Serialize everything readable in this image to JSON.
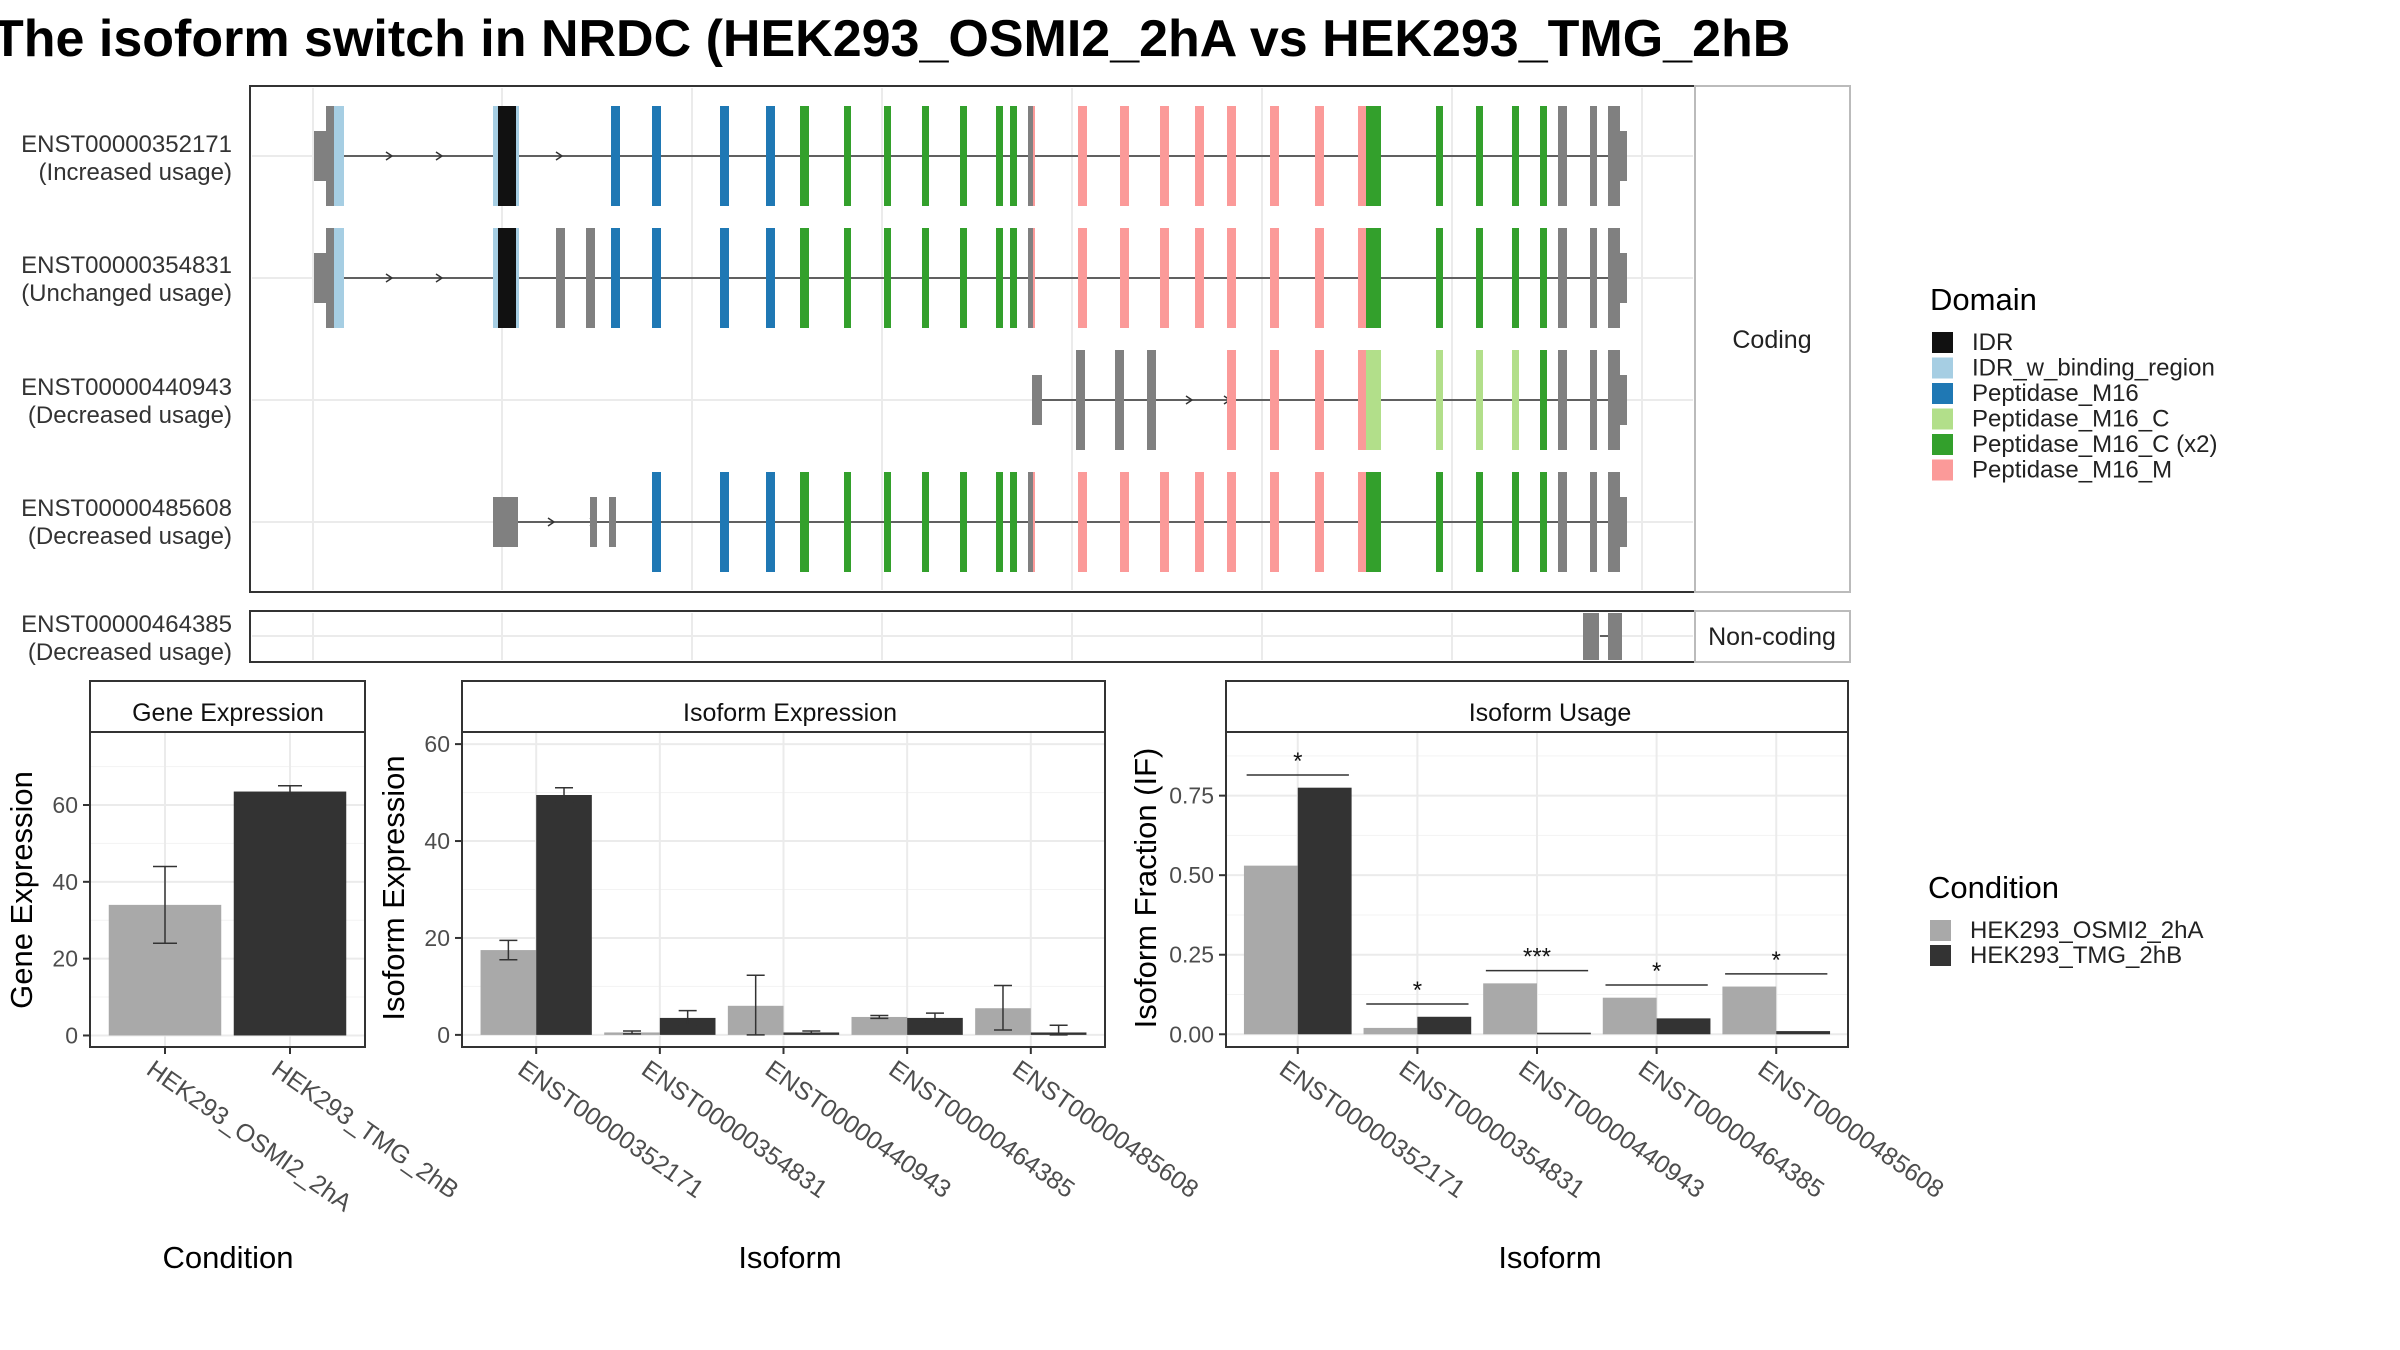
{
  "title": "The isoform switch in NRDC (HEK293_OSMI2_2hA vs HEK293_TMG_2hB",
  "structure": {
    "coding_strip_label": "Coding",
    "noncoding_strip_label": "Non-coding",
    "transcripts": [
      {
        "id": "ENST00000352171",
        "usage": "(Increased usage)",
        "group": "coding"
      },
      {
        "id": "ENST00000354831",
        "usage": "(Unchanged usage)",
        "group": "coding"
      },
      {
        "id": "ENST00000440943",
        "usage": "(Decreased usage)",
        "group": "coding"
      },
      {
        "id": "ENST00000485608",
        "usage": "(Decreased usage)",
        "group": "coding"
      },
      {
        "id": "ENST00000464385",
        "usage": "(Decreased usage)",
        "group": "noncoding"
      }
    ]
  },
  "domain_legend": {
    "title": "Domain",
    "items": [
      {
        "label": "IDR",
        "color": "#111111"
      },
      {
        "label": "IDR_w_binding_region",
        "color": "#a6cee3"
      },
      {
        "label": "Peptidase_M16",
        "color": "#1f78b4"
      },
      {
        "label": "Peptidase_M16_C",
        "color": "#b2df8a"
      },
      {
        "label": "Peptidase_M16_C (x2)",
        "color": "#33a02c"
      },
      {
        "label": "Peptidase_M16_M",
        "color": "#fb9a99"
      }
    ]
  },
  "condition_legend": {
    "title": "Condition",
    "items": [
      {
        "label": "HEK293_OSMI2_2hA",
        "color": "#a9a9a9"
      },
      {
        "label": "HEK293_TMG_2hB",
        "color": "#333333"
      }
    ]
  },
  "chart_data": [
    {
      "type": "bar",
      "panel": "Gene Expression",
      "xlabel": "Condition",
      "ylabel": "Gene Expression",
      "categories": [
        "HEK293_OSMI2_2hA",
        "HEK293_TMG_2hB"
      ],
      "values": [
        34,
        63.5
      ],
      "errors": [
        [
          24,
          44
        ],
        [
          62.5,
          65
        ]
      ],
      "ylim": [
        -3,
        79
      ],
      "yticks": [
        0,
        20,
        40,
        60
      ],
      "colors": [
        "#a9a9a9",
        "#333333"
      ]
    },
    {
      "type": "bar",
      "panel": "Isoform Expression",
      "xlabel": "Isoform",
      "ylabel": "Isoform Expression",
      "categories": [
        "ENST00000352171",
        "ENST00000354831",
        "ENST00000440943",
        "ENST00000464385",
        "ENST00000485608"
      ],
      "series": [
        {
          "name": "HEK293_OSMI2_2hA",
          "values": [
            17.5,
            0.5,
            6,
            3.7,
            5.5
          ],
          "errors": [
            [
              15.5,
              19.5
            ],
            [
              0.2,
              0.8
            ],
            [
              0,
              12.3
            ],
            [
              3.4,
              4.0
            ],
            [
              1.0,
              10.2
            ]
          ]
        },
        {
          "name": "HEK293_TMG_2hB",
          "values": [
            49.5,
            3.5,
            0.5,
            3.5,
            0.5
          ],
          "errors": [
            [
              48.0,
              51.0
            ],
            [
              2.0,
              5.0
            ],
            [
              0.2,
              0.8
            ],
            [
              2.5,
              4.5
            ],
            [
              0,
              2.0
            ]
          ]
        }
      ],
      "ylim": [
        -2.5,
        62.5
      ],
      "yticks": [
        0,
        20,
        40,
        60
      ]
    },
    {
      "type": "bar",
      "panel": "Isoform Usage",
      "xlabel": "Isoform",
      "ylabel": "Isoform Fraction (IF)",
      "categories": [
        "ENST00000352171",
        "ENST00000354831",
        "ENST00000440943",
        "ENST00000464385",
        "ENST00000485608"
      ],
      "series": [
        {
          "name": "HEK293_OSMI2_2hA",
          "values": [
            0.53,
            0.02,
            0.16,
            0.115,
            0.15
          ]
        },
        {
          "name": "HEK293_TMG_2hB",
          "values": [
            0.775,
            0.055,
            0.005,
            0.05,
            0.01
          ]
        }
      ],
      "significance": [
        "*",
        "*",
        "***",
        "*",
        "*"
      ],
      "sig_y": [
        0.815,
        0.095,
        0.2,
        0.155,
        0.19
      ],
      "ylim": [
        -0.04,
        0.95
      ],
      "yticks": [
        0,
        0.25,
        0.5,
        0.75
      ],
      "ytick_labels": [
        "0.00",
        "0.25",
        "0.50",
        "0.75"
      ]
    }
  ]
}
